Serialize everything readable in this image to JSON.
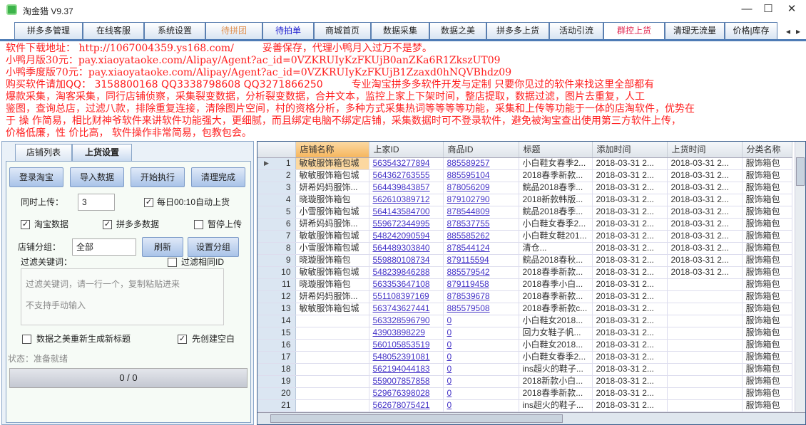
{
  "window": {
    "title": "淘金猎 V9.37",
    "minimize": "—",
    "maximize": "☐",
    "close": "✕"
  },
  "main_tabs": [
    {
      "label": "拼多多管理",
      "color": "#222222"
    },
    {
      "label": "在线客服",
      "color": "#222222"
    },
    {
      "label": "系统设置",
      "color": "#222222"
    },
    {
      "label": "待拼团",
      "color": "#e09050"
    },
    {
      "label": "待拍单",
      "color": "#2020d0"
    },
    {
      "label": "商城首页",
      "color": "#222222"
    },
    {
      "label": "数据采集",
      "color": "#222222"
    },
    {
      "label": "数据之美",
      "color": "#222222"
    },
    {
      "label": "拼多多上货",
      "color": "#222222"
    },
    {
      "label": "活动引流",
      "color": "#222222"
    },
    {
      "label": "群控上货",
      "color": "#e0204a"
    },
    {
      "label": "清理无流量",
      "color": "#222222"
    },
    {
      "label": "价格|库存",
      "color": "#222222"
    }
  ],
  "tab_scroll": {
    "left": "◂",
    "right": "▸"
  },
  "sub_tabs": [
    "店铺列表",
    "上货设置"
  ],
  "settings": {
    "buttons": [
      "登录淘宝",
      "导入数据",
      "开始执行",
      "清理完成"
    ],
    "concurrent_label": "同时上传：",
    "concurrent_value": "3",
    "auto_upload": {
      "label": "每日00:10自动上货",
      "checked": true
    },
    "taobao_data": {
      "label": "淘宝数据",
      "checked": true
    },
    "pdd_data": {
      "label": "拼多多数据",
      "checked": true
    },
    "pause_upload": {
      "label": "暂停上传",
      "checked": false
    },
    "shop_group_label": "店铺分组：",
    "shop_group_value": "全部",
    "refresh_button": "刷新",
    "set_group_button": "设置分组",
    "filter_label": "过滤关键词：",
    "filter_same": {
      "label": "过滤相同ID",
      "checked": false
    },
    "filter_placeholder_1": "过滤关键词，请一行一个，复制粘贴进来",
    "filter_placeholder_2": "不支持手动输入",
    "regen_title": {
      "label": "数据之美重新生成新标题",
      "checked": false
    },
    "create_blank": {
      "label": "先创建空白",
      "checked": true
    },
    "status": "状态：准备就绪",
    "progress": "0 / 0"
  },
  "grid": {
    "columns": [
      "店铺名称",
      "上家ID",
      "商品ID",
      "标题",
      "添加时间",
      "上货时间",
      "分类名称"
    ],
    "rows": [
      [
        "1",
        "敏敏服饰箱包城",
        "563543277894",
        "885589257",
        "小白鞋女春季2...",
        "2018-03-31 2...",
        "2018-03-31 2...",
        "服饰箱包"
      ],
      [
        "2",
        "敏敏服饰箱包城",
        "564362763555",
        "885595104",
        "2018春季新款...",
        "2018-03-31 2...",
        "2018-03-31 2...",
        "服饰箱包"
      ],
      [
        "3",
        "妍希妈妈服饰...",
        "564439843857",
        "878056209",
        "鲩品2018春季...",
        "2018-03-31 2...",
        "2018-03-31 2...",
        "服饰箱包"
      ],
      [
        "4",
        "晓璇服饰箱包",
        "562610389712",
        "879102790",
        "2018新款韩版...",
        "2018-03-31 2...",
        "2018-03-31 2...",
        "服饰箱包"
      ],
      [
        "5",
        "小雪服饰箱包城",
        "564143584700",
        "878544809",
        "鲩品2018春季...",
        "2018-03-31 2...",
        "2018-03-31 2...",
        "服饰箱包"
      ],
      [
        "6",
        "妍希妈妈服饰...",
        "559672344995",
        "878537755",
        "小白鞋女春季2...",
        "2018-03-31 2...",
        "2018-03-31 2...",
        "服饰箱包"
      ],
      [
        "7",
        "敏敏服饰箱包城",
        "548242090594",
        "885585262",
        "小白鞋女鞋201...",
        "2018-03-31 2...",
        "2018-03-31 2...",
        "服饰箱包"
      ],
      [
        "8",
        "小雪服饰箱包城",
        "564489303840",
        "878544124",
        "清仓...",
        "2018-03-31 2...",
        "2018-03-31 2...",
        "服饰箱包"
      ],
      [
        "9",
        "晓璇服饰箱包",
        "559880108734",
        "879115594",
        "鲩品2018春秋...",
        "2018-03-31 2...",
        "2018-03-31 2...",
        "服饰箱包"
      ],
      [
        "10",
        "敏敏服饰箱包城",
        "548239846288",
        "885579542",
        "2018春季新款...",
        "2018-03-31 2...",
        "2018-03-31 2...",
        "服饰箱包"
      ],
      [
        "11",
        "晓璇服饰箱包",
        "563353647108",
        "879119458",
        "2018春季小白...",
        "2018-03-31 2...",
        "",
        "服饰箱包"
      ],
      [
        "12",
        "妍希妈妈服饰...",
        "551108397169",
        "878539678",
        "2018春季新款...",
        "2018-03-31 2...",
        "",
        "服饰箱包"
      ],
      [
        "13",
        "敏敏服饰箱包城",
        "563743627441",
        "885579508",
        "2018春季新款c...",
        "2018-03-31 2...",
        "",
        "服饰箱包"
      ],
      [
        "14",
        "",
        "563328596790",
        "0",
        "小白鞋女2018...",
        "2018-03-31 2...",
        "",
        "服饰箱包"
      ],
      [
        "15",
        "",
        "43903898229",
        "0",
        "回力女鞋子帆...",
        "2018-03-31 2...",
        "",
        "服饰箱包"
      ],
      [
        "16",
        "",
        "560105853519",
        "0",
        "小白鞋女2018...",
        "2018-03-31 2...",
        "",
        "服饰箱包"
      ],
      [
        "17",
        "",
        "548052391081",
        "0",
        "小白鞋女春季2...",
        "2018-03-31 2...",
        "",
        "服饰箱包"
      ],
      [
        "18",
        "",
        "562194044183",
        "0",
        "ins超火的鞋子...",
        "2018-03-31 2...",
        "",
        "服饰箱包"
      ],
      [
        "19",
        "",
        "559007857858",
        "0",
        "2018新款小白...",
        "2018-03-31 2...",
        "",
        "服饰箱包"
      ],
      [
        "20",
        "",
        "529676398028",
        "0",
        "2018春季新款...",
        "2018-03-31 2...",
        "",
        "服饰箱包"
      ],
      [
        "21",
        "",
        "562678075421",
        "0",
        "ins超火的鞋子...",
        "2018-03-31 2...",
        "",
        "服饰箱包"
      ]
    ]
  },
  "watermark": {
    "l1": "软件下载地址： http://1067004359.ys168.com/",
    "l2": "小鸭月版30元：pay.xiaoyataoke.com/Alipay/Agent?ac_id=0VZKRUIyKzFKUjB0anZKa6R1ZkszUT09",
    "l3": "小鸭季度版70元：pay.xiaoyataoke.com/Alipay/Agent?ac_id=0VZKRUIyKzFKUjB1Zzaxd0hNQVBhdz09",
    "l4": "妥善保存，代理小鸭月入过万不是梦。",
    "qq": "购买软件请加QQ： 3158800168     QQ3338798608     QQ3271866250",
    "p1": "爆款采集，淘客采集，同行店铺侦察，采集裂变数据，分析裂变数据，合并文本，监控上家上下架时间，整店提取，数据过滤，图片去重复，人工",
    "p2": "鉴图，查询总店，过滤八款，排除重复连接，清除图片空间，村的资格分析，多种方式采集热词等等等等功能，采集和上传等功能于一体的店淘软件，优势在",
    "p3": "于 操 作简易，相比财神爷软件来讲软件功能强大，更细腻，而且绑定电脑不绑定店铺，采集数据时可不登录软件，避免被淘宝查出使用第三方软件上传，",
    "p4": "价格低廉，性 价比高， 软件操作非常简易，包教包会。",
    "ad": "专业淘宝拼多多软件开发与定制 只要你见过的软件来找这里全部都有"
  }
}
